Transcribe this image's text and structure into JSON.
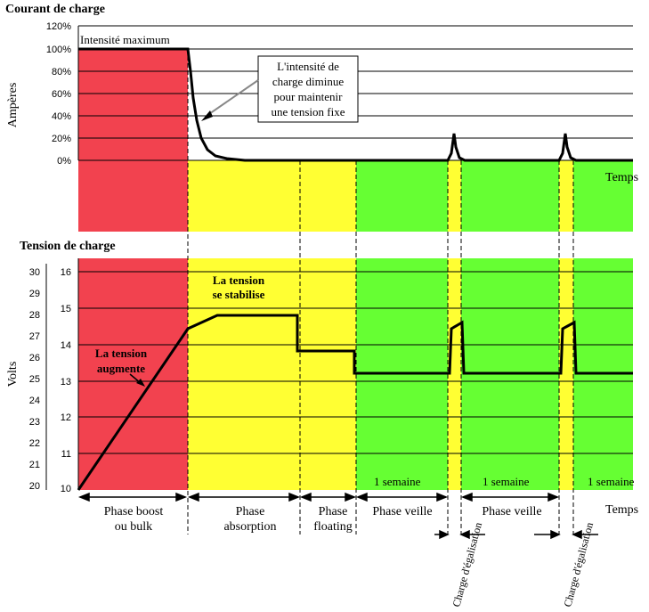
{
  "colors": {
    "bulk": "#f2424f",
    "absorption": "#ffff33",
    "floating": "#ffff33",
    "standby": "#66ff33",
    "equalization": "#ffff33",
    "curve": "#000000",
    "grid": "#000000"
  },
  "current_chart": {
    "title": "Courant de charge",
    "ylabel": "Ampères",
    "xlabel": "Temps",
    "yticks": [
      "120%",
      "100%",
      "80%",
      "60%",
      "40%",
      "20%",
      "0%"
    ],
    "annotation_max": "Intensité maximum",
    "annotation_box": [
      "L'intensité de",
      "charge diminue",
      "pour maintenir",
      "une tension fixe"
    ]
  },
  "voltage_chart": {
    "title": "Tension de charge",
    "ylabel": "Volts",
    "xlabel": "Temps",
    "yticks_outer": [
      "30",
      "29",
      "28",
      "27",
      "26",
      "25",
      "24",
      "23",
      "22",
      "21",
      "20"
    ],
    "yticks_inner": [
      "16",
      "15",
      "14",
      "13",
      "12",
      "11",
      "10"
    ],
    "annotation_rise": [
      "La tension",
      "augmente"
    ],
    "annotation_stable": [
      "La tension",
      "se stabilise"
    ],
    "week_labels": [
      "1 semaine",
      "1 semaine",
      "1 semaine"
    ]
  },
  "phases": [
    {
      "label": [
        "Phase boost",
        "ou bulk"
      ]
    },
    {
      "label": [
        "Phase",
        "absorption"
      ]
    },
    {
      "label": [
        "Phase",
        "floating"
      ]
    },
    {
      "label": [
        "Phase veille"
      ]
    },
    {
      "label": [
        "Phase veille"
      ]
    }
  ],
  "equalization_label": "Charge d'égalisation",
  "chart_data": [
    {
      "type": "line",
      "title": "Courant de charge",
      "ylabel": "Ampères",
      "xlabel": "Temps",
      "y_unit": "%",
      "ylim": [
        0,
        120
      ],
      "grid": true,
      "series": [
        {
          "values_description_free": true,
          "points": [
            [
              0,
              100
            ],
            [
              1,
              100
            ],
            [
              1.2,
              40
            ],
            [
              1.5,
              5
            ],
            [
              2,
              0
            ],
            [
              3,
              0
            ],
            [
              3.4,
              0
            ],
            [
              3.5,
              25
            ],
            [
              3.6,
              2
            ],
            [
              4,
              0
            ],
            [
              4.4,
              0
            ],
            [
              4.5,
              25
            ],
            [
              4.6,
              2
            ],
            [
              5,
              0
            ]
          ]
        }
      ]
    },
    {
      "type": "line",
      "title": "Tension de charge",
      "ylabel": "Volts",
      "xlabel": "Temps",
      "ylim": [
        10,
        16
      ],
      "ylim_outer": [
        20,
        30
      ],
      "grid": true,
      "series": [
        {
          "points": [
            [
              0,
              10
            ],
            [
              1,
              14.4
            ],
            [
              1.25,
              14.8
            ],
            [
              2,
              14.8
            ],
            [
              2,
              13.8
            ],
            [
              2.5,
              13.8
            ],
            [
              2.5,
              13.2
            ],
            [
              3.4,
              13.2
            ],
            [
              3.45,
              14.4
            ],
            [
              3.55,
              14.6
            ],
            [
              3.6,
              13.2
            ],
            [
              4.4,
              13.2
            ],
            [
              4.45,
              14.4
            ],
            [
              4.55,
              14.6
            ],
            [
              4.6,
              13.2
            ],
            [
              5,
              13.2
            ]
          ]
        }
      ]
    }
  ]
}
